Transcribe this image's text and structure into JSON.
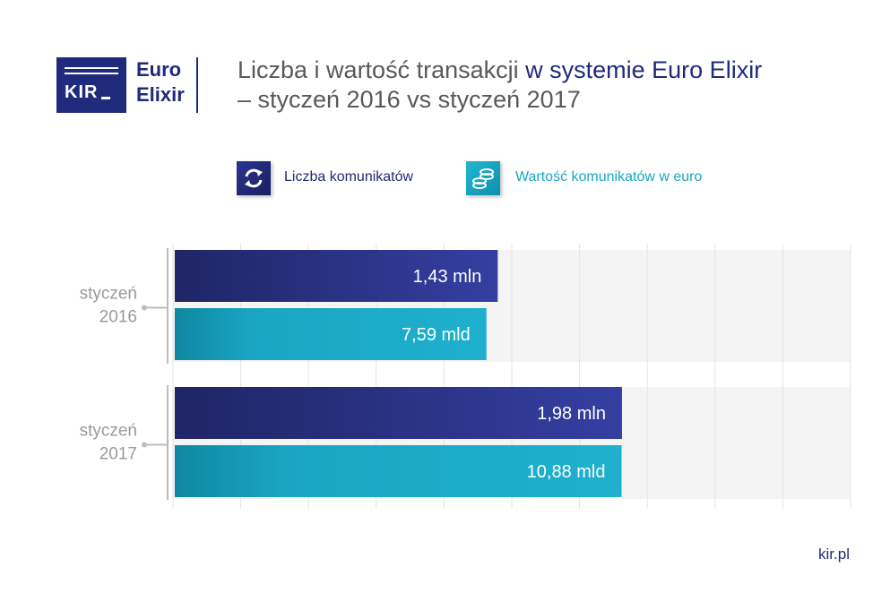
{
  "header": {
    "kir_logo_text": "KIR",
    "euro_logo_line1": "Euro",
    "euro_logo_line2": "Elixir",
    "title_line1_plain": "Liczba i wartość transakcji ",
    "title_line1_accent": "w systemie Euro Elixir",
    "title_line2": "– styczeń 2016 vs styczeń 2017"
  },
  "legend": [
    {
      "label": "Liczba komunikatów",
      "icon": "refresh-arrows-icon",
      "color": "#232a6e"
    },
    {
      "label": "Wartość komunikatów w euro",
      "icon": "coin-stack-icon",
      "color": "#1aa6c3"
    }
  ],
  "footer": {
    "site": "kir.pl"
  },
  "colors": {
    "navy": "#1f2a7c",
    "teal": "#1aa6c3",
    "gray_text": "#58595b"
  },
  "chart_data": {
    "type": "bar",
    "orientation": "horizontal",
    "title": "Liczba i wartość transakcji w systemie Euro Elixir – styczeń 2016 vs styczeń 2017",
    "categories": [
      {
        "line1": "styczeń",
        "line2": "2016"
      },
      {
        "line1": "styczeń",
        "line2": "2017"
      }
    ],
    "series": [
      {
        "name": "Liczba komunikatów",
        "unit": "mln",
        "values": [
          1.43,
          1.98
        ],
        "labels": [
          "1,43 mln",
          "1,98 mln"
        ]
      },
      {
        "name": "Wartość komunikatów w euro",
        "unit": "mld",
        "values": [
          7.59,
          10.88
        ],
        "labels": [
          "7,59 mld",
          "10,88 mld"
        ]
      }
    ],
    "grid": true,
    "legend_position": "top"
  }
}
